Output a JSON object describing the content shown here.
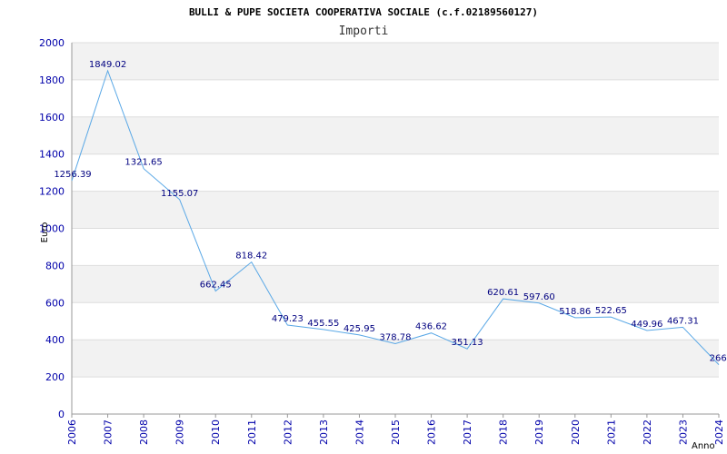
{
  "chart_data": {
    "type": "line",
    "title": "BULLI & PUPE SOCIETA COOPERATIVA SOCIALE (c.f.02189560127)",
    "subtitle": "Importi",
    "xlabel": "Anno",
    "ylabel": "Euro",
    "ylim": [
      0,
      2000
    ],
    "yticks": [
      0,
      200,
      400,
      600,
      800,
      1000,
      1200,
      1400,
      1600,
      1800,
      2000
    ],
    "x": [
      "2006",
      "2007",
      "2008",
      "2009",
      "2010",
      "2011",
      "2012",
      "2013",
      "2014",
      "2015",
      "2016",
      "2017",
      "2018",
      "2019",
      "2020",
      "2021",
      "2022",
      "2023",
      "2024"
    ],
    "values": [
      1256.39,
      1849.02,
      1321.65,
      1155.07,
      662.45,
      818.42,
      479.23,
      455.55,
      425.95,
      378.78,
      436.62,
      351.13,
      620.61,
      597.6,
      518.86,
      522.65,
      449.96,
      467.31,
      266.0
    ],
    "data_labels": [
      "1256.39",
      "1849.02",
      "1321.65",
      "1155.07",
      "662.45",
      "818.42",
      "479.23",
      "455.55",
      "425.95",
      "378.78",
      "436.62",
      "351.13",
      "620.61",
      "597.60",
      "518.86",
      "522.65",
      "449.96",
      "467.31",
      "266.0"
    ],
    "grid": true,
    "line_color": "#5aa8e6",
    "band_color": "#f2f2f2",
    "tick_color": "#0000aa"
  }
}
